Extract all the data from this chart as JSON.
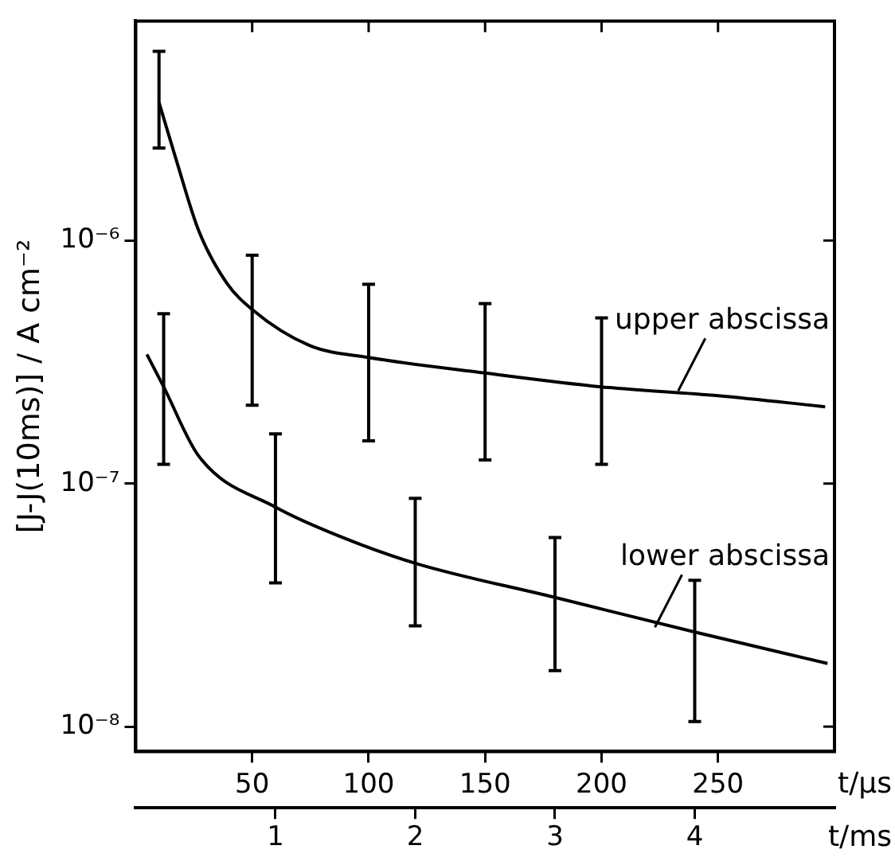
{
  "chart_data": {
    "type": "line",
    "ylabel": "[J-J(10ms)] / A cm⁻²",
    "xlabel": "t/µs",
    "x2label": "t/ms",
    "log": "y",
    "ylim": [
      7.9e-09,
      8e-06
    ],
    "yticks": [
      {
        "value": 1e-08,
        "label": "10⁻⁸"
      },
      {
        "value": 1e-07,
        "label": "10⁻⁷"
      },
      {
        "value": 1e-06,
        "label": "10⁻⁶"
      }
    ],
    "xlim": [
      0,
      300
    ],
    "xticks": [
      50,
      100,
      150,
      200,
      250
    ],
    "x2lim": [
      0,
      5
    ],
    "x2ticks": [
      1,
      2,
      3,
      4
    ],
    "marker": "none",
    "grid": false,
    "legend": false,
    "series": [
      {
        "name": "upper abscissa",
        "color": "#000000",
        "x": [
          10,
          17.7,
          27,
          39,
          50,
          74.6,
          100,
          150,
          200,
          250,
          296
        ],
        "values": [
          3.7e-06,
          2.1e-06,
          1.1e-06,
          6.7e-07,
          5.2e-07,
          3.7e-07,
          3.3e-07,
          2.85e-07,
          2.5e-07,
          2.3e-07,
          2.07e-07
        ],
        "errors": [
          [
            2.4e-06,
            6e-06
          ],
          null,
          null,
          null,
          [
            2.1e-07,
            8.7e-07
          ],
          null,
          [
            1.5e-07,
            6.6e-07
          ],
          [
            1.25e-07,
            5.5e-07
          ],
          [
            1.2e-07,
            4.8e-07
          ],
          null,
          null
        ]
      },
      {
        "name": "lower abscissa",
        "color": "#000000",
        "axis": "x2",
        "x": [
          0.08,
          0.2,
          0.45,
          1,
          1.48,
          2,
          3,
          4,
          4.95
        ],
        "values": [
          3.4e-07,
          2.5e-07,
          1.3e-07,
          8e-08,
          6e-08,
          4.7e-08,
          3.4e-08,
          2.45e-08,
          1.82e-08
        ],
        "errors": [
          null,
          [
            1.2e-07,
            5e-07
          ],
          null,
          [
            3.9e-08,
            1.6e-07
          ],
          null,
          [
            2.6e-08,
            8.7e-08
          ],
          [
            1.7e-08,
            6e-08
          ],
          [
            1.05e-08,
            4e-08
          ],
          null
        ]
      }
    ]
  }
}
